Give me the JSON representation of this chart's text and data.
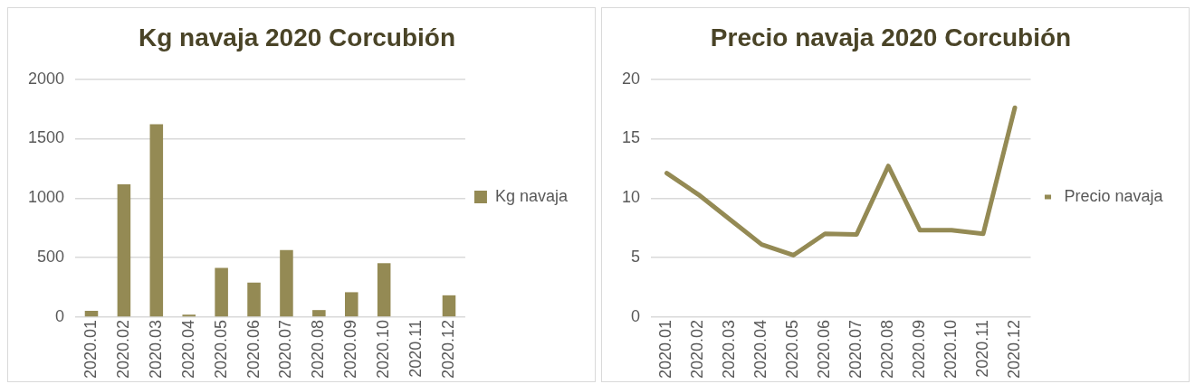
{
  "chart_data": [
    {
      "type": "bar",
      "title": "Kg navaja 2020 Corcubión",
      "categories": [
        "2020.01",
        "2020.02",
        "2020.03",
        "2020.04",
        "2020.05",
        "2020.06",
        "2020.07",
        "2020.08",
        "2020.09",
        "2020.10",
        "2020.11",
        "2020.12"
      ],
      "series": [
        {
          "name": "Kg navaja",
          "color": "#948a54",
          "values": [
            52,
            1116,
            1621,
            20,
            414,
            290,
            564,
            59,
            209,
            453,
            0,
            183
          ]
        }
      ],
      "ylim": [
        0,
        2000
      ],
      "yticks": [
        0,
        500,
        1000,
        1500,
        2000
      ],
      "grid": "y",
      "legend": "right"
    },
    {
      "type": "line",
      "title": "Precio navaja 2020 Corcubión",
      "categories": [
        "2020.01",
        "2020.02",
        "2020.03",
        "2020.04",
        "2020.05",
        "2020.06",
        "2020.07",
        "2020.08",
        "2020.09",
        "2020.10",
        "2020.11",
        "2020.12"
      ],
      "series": [
        {
          "name": "Precio navaja",
          "color": "#948a54",
          "values": [
            12.1,
            10.3,
            8.2,
            6.1,
            5.2,
            7.0,
            6.95,
            12.7,
            7.3,
            7.3,
            7.0,
            17.6
          ]
        }
      ],
      "ylim": [
        0,
        20
      ],
      "yticks": [
        0,
        5,
        10,
        15,
        20
      ],
      "grid": "y",
      "legend": "right"
    }
  ]
}
